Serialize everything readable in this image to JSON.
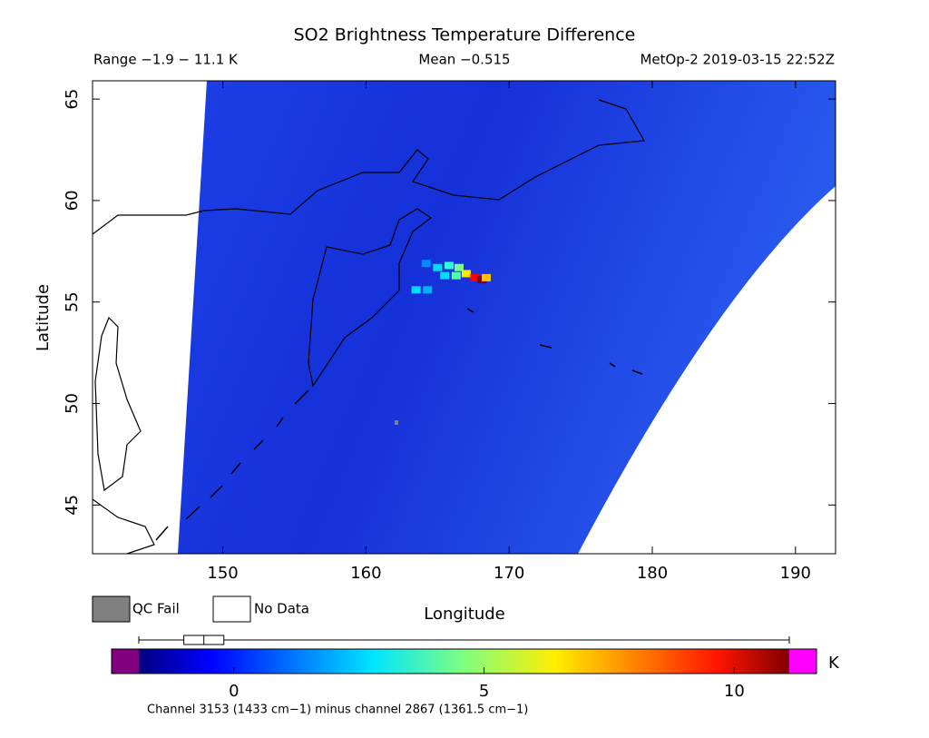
{
  "chart_data": {
    "type": "map",
    "title": "SO2 Brightness Temperature Difference",
    "range_text": "Range −1.9 − 11.1 K",
    "mean_text": "Mean −0.515",
    "satellite_text": "MetOp-2 2019-03-15 22:52Z",
    "xlabel": "Longitude",
    "ylabel": "Latitude",
    "xlim": [
      140.9,
      192.8
    ],
    "ylim": [
      42.6,
      65.9
    ],
    "xticks": [
      150,
      160,
      170,
      180,
      190
    ],
    "yticks": [
      45,
      50,
      55,
      60,
      65
    ],
    "legend": [
      "QC Fail",
      "No Data"
    ],
    "colorbar": {
      "lim": [
        -1.9,
        11.1
      ],
      "ticks": [
        0,
        5,
        10
      ],
      "unit": "K",
      "box": {
        "min": -1.9,
        "q1": -1.0,
        "median": -0.6,
        "q3": -0.2,
        "max": 11.1
      }
    },
    "footnote": "Channel 3153 (1433 cm−1) minus channel 2867 (1361.5 cm−1)",
    "cells": {
      "lon": [
        164.2,
        165.0,
        165.8,
        166.5,
        165.5,
        166.3,
        167.0,
        167.6,
        168.1,
        168.4,
        163.5,
        164.3
      ],
      "lat": [
        56.9,
        56.7,
        56.8,
        56.7,
        56.3,
        56.3,
        56.4,
        56.2,
        56.1,
        56.2,
        55.6,
        55.6
      ],
      "values": [
        1.5,
        2.5,
        3.5,
        4.5,
        2.5,
        4.0,
        6.5,
        9.5,
        11.1,
        7.0,
        2.5,
        2.0
      ]
    }
  }
}
